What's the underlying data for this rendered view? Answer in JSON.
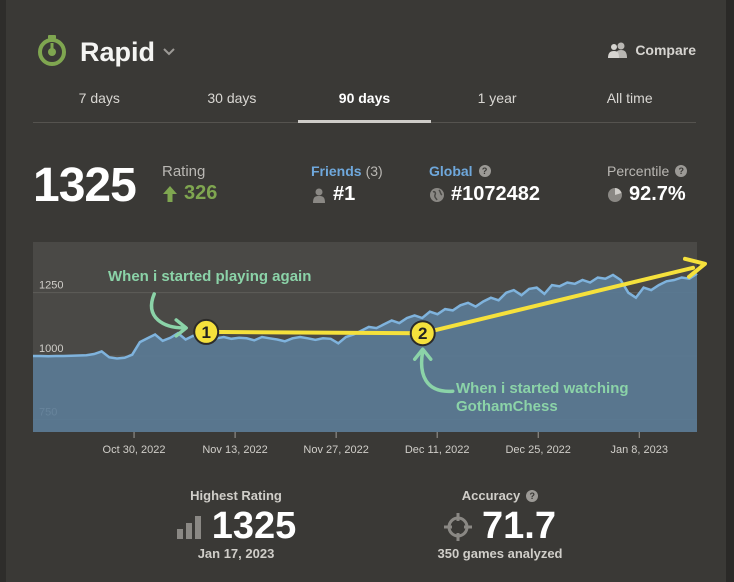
{
  "header": {
    "title": "Rapid",
    "compare_label": "Compare",
    "icons": [
      "stopwatch-icon",
      "chevron-down-icon",
      "users-icon"
    ]
  },
  "tabs": [
    {
      "label": "7 days",
      "active": false
    },
    {
      "label": "30 days",
      "active": false
    },
    {
      "label": "90 days",
      "active": true
    },
    {
      "label": "1 year",
      "active": false
    },
    {
      "label": "All time",
      "active": false
    }
  ],
  "stats": {
    "rating_value": "1325",
    "rating_label": "Rating",
    "rating_change": "326",
    "friends_label": "Friends",
    "friends_count": "(3)",
    "friends_rank": "#1",
    "global_label": "Global",
    "global_rank": "#1072482",
    "percentile_label": "Percentile",
    "percentile_value": "92.7%"
  },
  "chart_data": {
    "type": "area",
    "y_ticks": [
      750,
      1000,
      1250
    ],
    "ylim": [
      700,
      1450
    ],
    "x_labels": [
      "Oct 30, 2022",
      "Nov 13, 2022",
      "Nov 27, 2022",
      "Dec 11, 2022",
      "Dec 25, 2022",
      "Jan 8, 2023"
    ],
    "x_range_days": [
      0,
      92
    ],
    "series": [
      {
        "name": "Rating",
        "values": [
          1000,
          1000,
          999,
          1000,
          1000,
          1001,
          1002,
          1003,
          1008,
          1018,
          995,
          990,
          993,
          1005,
          1055,
          1070,
          1085,
          1060,
          1072,
          1090,
          1065,
          1080,
          1068,
          1078,
          1070,
          1075,
          1068,
          1072,
          1070,
          1062,
          1075,
          1070,
          1065,
          1058,
          1070,
          1075,
          1070,
          1064,
          1070,
          1068,
          1050,
          1075,
          1085,
          1100,
          1115,
          1110,
          1125,
          1140,
          1130,
          1150,
          1160,
          1150,
          1175,
          1165,
          1185,
          1180,
          1200,
          1210,
          1195,
          1215,
          1230,
          1220,
          1250,
          1260,
          1240,
          1265,
          1270,
          1245,
          1280,
          1275,
          1290,
          1285,
          1300,
          1290,
          1310,
          1305,
          1320,
          1300,
          1250,
          1230,
          1270,
          1260,
          1280,
          1295,
          1300,
          1310,
          1305,
          1325
        ]
      }
    ],
    "annotations": [
      {
        "text": "When i started playing again",
        "marker": "1",
        "day": 24,
        "value": 1095
      },
      {
        "text_line1": "When i started watching",
        "text_line2": "GothamChess",
        "marker": "2",
        "day": 54,
        "value": 1090
      }
    ],
    "trend_lines": [
      {
        "from_day": 24,
        "from_value": 1095,
        "to_day": 54,
        "to_value": 1090
      },
      {
        "from_day": 54,
        "to_day": 92,
        "from_value": 1090,
        "to_value": 1360
      }
    ]
  },
  "annotations": {
    "first_text": "When i started playing again",
    "second_line1": "When i started watching",
    "second_line2": "GothamChess",
    "marker1": "1",
    "marker2": "2"
  },
  "bottom": {
    "highest_label": "Highest Rating",
    "highest_value": "1325",
    "highest_date": "Jan 17, 2023",
    "accuracy_label": "Accuracy",
    "accuracy_value": "71.7",
    "games_analyzed": "350 games analyzed"
  },
  "colors": {
    "accent_green": "#7fa650",
    "link_blue": "#6fa8dc",
    "chart_fill": "#5b7b96",
    "chart_line": "#7fb3dd",
    "annotation_yellow": "#f5e13c",
    "annotation_green": "#8bd3a8"
  }
}
